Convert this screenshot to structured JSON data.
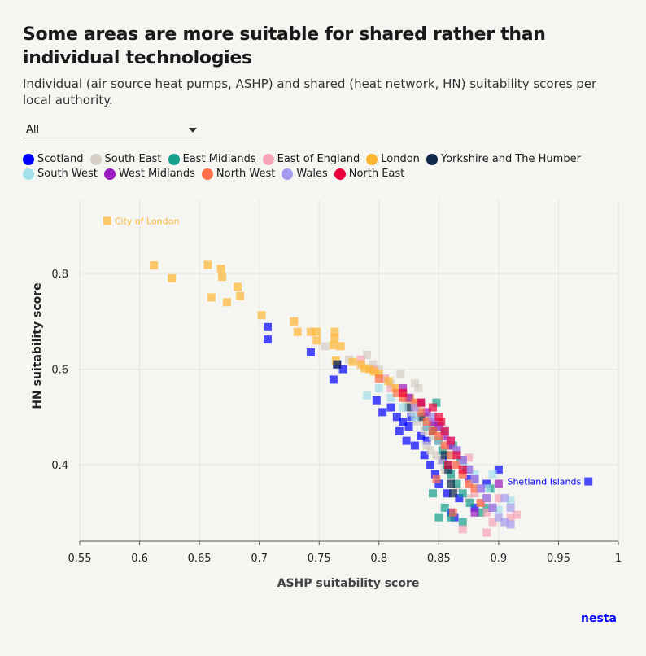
{
  "title": "Some areas are more suitable for shared rather than individual technologies",
  "subtitle": "Individual (air source heat pumps, ASHP) and shared (heat network, HN) suitability scores per local authority.",
  "dropdown": {
    "selected": "All"
  },
  "logo": "nesta",
  "chart_data": {
    "type": "scatter",
    "xlabel": "ASHP suitability score",
    "ylabel": "HN suitability score",
    "xlim": [
      0.55,
      1.0
    ],
    "ylim": [
      0.24,
      0.955
    ],
    "xticks": [
      0.55,
      0.6,
      0.65,
      0.7,
      0.75,
      0.8,
      0.85,
      0.9,
      0.95,
      1.0
    ],
    "xtick_labels": [
      "0.55",
      "0.6",
      "0.65",
      "0.7",
      "0.75",
      "0.8",
      "0.85",
      "0.9",
      "0.95",
      "1"
    ],
    "yticks": [
      0.4,
      0.6,
      0.8
    ],
    "ytick_labels": [
      "0.4",
      "0.6",
      "0.8"
    ],
    "grid": true,
    "legend_position": "top",
    "series": [
      {
        "name": "Scotland",
        "color": "#0000ff",
        "points": [
          [
            0.707,
            0.688
          ],
          [
            0.707,
            0.662
          ],
          [
            0.743,
            0.635
          ],
          [
            0.762,
            0.578
          ],
          [
            0.765,
            0.61
          ],
          [
            0.77,
            0.6
          ],
          [
            0.798,
            0.535
          ],
          [
            0.803,
            0.51
          ],
          [
            0.81,
            0.52
          ],
          [
            0.815,
            0.5
          ],
          [
            0.817,
            0.47
          ],
          [
            0.82,
            0.49
          ],
          [
            0.823,
            0.45
          ],
          [
            0.825,
            0.48
          ],
          [
            0.827,
            0.5
          ],
          [
            0.83,
            0.44
          ],
          [
            0.835,
            0.46
          ],
          [
            0.838,
            0.42
          ],
          [
            0.84,
            0.45
          ],
          [
            0.843,
            0.4
          ],
          [
            0.847,
            0.38
          ],
          [
            0.85,
            0.36
          ],
          [
            0.853,
            0.41
          ],
          [
            0.857,
            0.34
          ],
          [
            0.86,
            0.3
          ],
          [
            0.863,
            0.29
          ],
          [
            0.867,
            0.33
          ],
          [
            0.875,
            0.37
          ],
          [
            0.88,
            0.31
          ],
          [
            0.89,
            0.36
          ],
          [
            0.9,
            0.39
          ],
          [
            0.975,
            0.365
          ]
        ]
      },
      {
        "name": "South East",
        "color": "#d4cec5",
        "points": [
          [
            0.755,
            0.648
          ],
          [
            0.775,
            0.62
          ],
          [
            0.79,
            0.63
          ],
          [
            0.795,
            0.61
          ],
          [
            0.8,
            0.6
          ],
          [
            0.805,
            0.58
          ],
          [
            0.81,
            0.57
          ],
          [
            0.815,
            0.56
          ],
          [
            0.82,
            0.55
          ],
          [
            0.823,
            0.53
          ],
          [
            0.826,
            0.54
          ],
          [
            0.828,
            0.51
          ],
          [
            0.83,
            0.57
          ],
          [
            0.832,
            0.49
          ],
          [
            0.835,
            0.52
          ],
          [
            0.838,
            0.47
          ],
          [
            0.84,
            0.44
          ],
          [
            0.842,
            0.5
          ],
          [
            0.845,
            0.46
          ],
          [
            0.848,
            0.42
          ],
          [
            0.85,
            0.48
          ],
          [
            0.852,
            0.41
          ],
          [
            0.855,
            0.39
          ],
          [
            0.858,
            0.45
          ],
          [
            0.86,
            0.37
          ],
          [
            0.865,
            0.35
          ],
          [
            0.87,
            0.4
          ],
          [
            0.875,
            0.33
          ],
          [
            0.88,
            0.36
          ],
          [
            0.818,
            0.59
          ],
          [
            0.833,
            0.56
          ],
          [
            0.843,
            0.43
          ]
        ]
      },
      {
        "name": "East Midlands",
        "color": "#14a08c",
        "points": [
          [
            0.84,
            0.5
          ],
          [
            0.845,
            0.48
          ],
          [
            0.848,
            0.53
          ],
          [
            0.85,
            0.45
          ],
          [
            0.853,
            0.43
          ],
          [
            0.855,
            0.47
          ],
          [
            0.857,
            0.4
          ],
          [
            0.86,
            0.38
          ],
          [
            0.862,
            0.44
          ],
          [
            0.865,
            0.36
          ],
          [
            0.868,
            0.41
          ],
          [
            0.87,
            0.34
          ],
          [
            0.873,
            0.39
          ],
          [
            0.876,
            0.32
          ],
          [
            0.88,
            0.37
          ],
          [
            0.845,
            0.34
          ],
          [
            0.85,
            0.29
          ],
          [
            0.855,
            0.31
          ],
          [
            0.86,
            0.29
          ],
          [
            0.87,
            0.28
          ],
          [
            0.885,
            0.3
          ],
          [
            0.89,
            0.31
          ],
          [
            0.893,
            0.35
          ]
        ]
      },
      {
        "name": "East of England",
        "color": "#f6a4b7",
        "points": [
          [
            0.785,
            0.62
          ],
          [
            0.795,
            0.6
          ],
          [
            0.805,
            0.58
          ],
          [
            0.81,
            0.56
          ],
          [
            0.82,
            0.54
          ],
          [
            0.83,
            0.52
          ],
          [
            0.84,
            0.5
          ],
          [
            0.845,
            0.48
          ],
          [
            0.85,
            0.46
          ],
          [
            0.855,
            0.44
          ],
          [
            0.86,
            0.42
          ],
          [
            0.865,
            0.4
          ],
          [
            0.87,
            0.38
          ],
          [
            0.875,
            0.36
          ],
          [
            0.88,
            0.34
          ],
          [
            0.885,
            0.32
          ],
          [
            0.89,
            0.3
          ],
          [
            0.895,
            0.28
          ],
          [
            0.9,
            0.33
          ],
          [
            0.91,
            0.29
          ],
          [
            0.915,
            0.295
          ],
          [
            0.87,
            0.265
          ],
          [
            0.89,
            0.258
          ],
          [
            0.865,
            0.43
          ],
          [
            0.875,
            0.415
          ]
        ]
      },
      {
        "name": "London",
        "color": "#fdb633",
        "points": [
          [
            0.573,
            0.91
          ],
          [
            0.612,
            0.817
          ],
          [
            0.627,
            0.79
          ],
          [
            0.657,
            0.818
          ],
          [
            0.66,
            0.75
          ],
          [
            0.668,
            0.81
          ],
          [
            0.669,
            0.793
          ],
          [
            0.673,
            0.74
          ],
          [
            0.682,
            0.772
          ],
          [
            0.684,
            0.753
          ],
          [
            0.702,
            0.713
          ],
          [
            0.729,
            0.7
          ],
          [
            0.732,
            0.678
          ],
          [
            0.743,
            0.678
          ],
          [
            0.748,
            0.678
          ],
          [
            0.748,
            0.66
          ],
          [
            0.763,
            0.678
          ],
          [
            0.763,
            0.665
          ],
          [
            0.762,
            0.65
          ],
          [
            0.768,
            0.648
          ],
          [
            0.764,
            0.618
          ],
          [
            0.778,
            0.615
          ],
          [
            0.785,
            0.61
          ],
          [
            0.792,
            0.6
          ],
          [
            0.8,
            0.59
          ],
          [
            0.808,
            0.575
          ],
          [
            0.814,
            0.56
          ],
          [
            0.82,
            0.55
          ],
          [
            0.826,
            0.538
          ],
          [
            0.832,
            0.528
          ],
          [
            0.788,
            0.602
          ],
          [
            0.796,
            0.595
          ]
        ]
      },
      {
        "name": "Yorkshire and The Humber",
        "color": "#0f294a",
        "points": [
          [
            0.765,
            0.61
          ],
          [
            0.825,
            0.52
          ],
          [
            0.835,
            0.5
          ],
          [
            0.84,
            0.48
          ],
          [
            0.845,
            0.47
          ],
          [
            0.85,
            0.45
          ],
          [
            0.855,
            0.42
          ],
          [
            0.858,
            0.39
          ],
          [
            0.86,
            0.36
          ],
          [
            0.862,
            0.34
          ]
        ]
      },
      {
        "name": "South West",
        "color": "#a4e0e9",
        "points": [
          [
            0.79,
            0.545
          ],
          [
            0.8,
            0.56
          ],
          [
            0.81,
            0.54
          ],
          [
            0.82,
            0.52
          ],
          [
            0.83,
            0.5
          ],
          [
            0.84,
            0.48
          ],
          [
            0.85,
            0.45
          ],
          [
            0.86,
            0.42
          ],
          [
            0.87,
            0.4
          ],
          [
            0.88,
            0.38
          ],
          [
            0.89,
            0.35
          ],
          [
            0.895,
            0.38
          ],
          [
            0.9,
            0.305
          ],
          [
            0.91,
            0.325
          ]
        ]
      },
      {
        "name": "West Midlands",
        "color": "#9a1bbe",
        "points": [
          [
            0.82,
            0.56
          ],
          [
            0.825,
            0.54
          ],
          [
            0.835,
            0.53
          ],
          [
            0.84,
            0.51
          ],
          [
            0.845,
            0.49
          ],
          [
            0.85,
            0.48
          ],
          [
            0.855,
            0.46
          ],
          [
            0.86,
            0.44
          ],
          [
            0.865,
            0.43
          ],
          [
            0.87,
            0.41
          ],
          [
            0.875,
            0.39
          ],
          [
            0.88,
            0.37
          ],
          [
            0.885,
            0.35
          ],
          [
            0.89,
            0.33
          ],
          [
            0.895,
            0.31
          ],
          [
            0.9,
            0.36
          ],
          [
            0.88,
            0.3
          ]
        ]
      },
      {
        "name": "North West",
        "color": "#ff6e47",
        "points": [
          [
            0.8,
            0.58
          ],
          [
            0.815,
            0.55
          ],
          [
            0.82,
            0.54
          ],
          [
            0.83,
            0.53
          ],
          [
            0.835,
            0.51
          ],
          [
            0.84,
            0.49
          ],
          [
            0.845,
            0.47
          ],
          [
            0.85,
            0.46
          ],
          [
            0.855,
            0.44
          ],
          [
            0.86,
            0.42
          ],
          [
            0.865,
            0.4
          ],
          [
            0.87,
            0.38
          ],
          [
            0.875,
            0.36
          ],
          [
            0.88,
            0.35
          ],
          [
            0.885,
            0.32
          ],
          [
            0.862,
            0.3
          ],
          [
            0.848,
            0.37
          ]
        ]
      },
      {
        "name": "Wales",
        "color": "#a59bee",
        "points": [
          [
            0.83,
            0.52
          ],
          [
            0.845,
            0.5
          ],
          [
            0.855,
            0.47
          ],
          [
            0.86,
            0.45
          ],
          [
            0.865,
            0.43
          ],
          [
            0.87,
            0.41
          ],
          [
            0.875,
            0.39
          ],
          [
            0.88,
            0.37
          ],
          [
            0.885,
            0.35
          ],
          [
            0.89,
            0.33
          ],
          [
            0.895,
            0.31
          ],
          [
            0.9,
            0.29
          ],
          [
            0.905,
            0.28
          ],
          [
            0.91,
            0.275
          ],
          [
            0.905,
            0.33
          ],
          [
            0.91,
            0.31
          ]
        ]
      },
      {
        "name": "North East",
        "color": "#eb003b",
        "points": [
          [
            0.82,
            0.55
          ],
          [
            0.835,
            0.53
          ],
          [
            0.845,
            0.52
          ],
          [
            0.85,
            0.5
          ],
          [
            0.855,
            0.47
          ],
          [
            0.86,
            0.45
          ],
          [
            0.865,
            0.42
          ],
          [
            0.87,
            0.39
          ],
          [
            0.852,
            0.49
          ],
          [
            0.858,
            0.4
          ]
        ]
      }
    ],
    "annotations": [
      {
        "text": "City of London",
        "x": 0.573,
        "y": 0.91,
        "color": "#fdb633",
        "anchor": "start"
      },
      {
        "text": "Shetland Islands",
        "x": 0.975,
        "y": 0.365,
        "color": "#0000ff",
        "anchor": "end"
      }
    ]
  }
}
